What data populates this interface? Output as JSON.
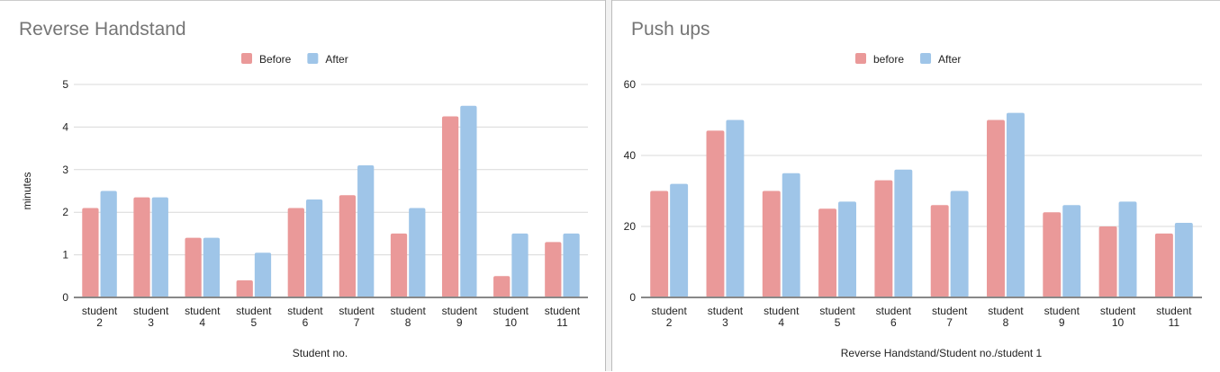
{
  "chart_data": [
    {
      "type": "bar",
      "title": "Reverse Handstand",
      "xlabel": "Student no.",
      "ylabel": "minutes",
      "ylim": [
        0,
        5
      ],
      "yticks": [
        0,
        1,
        2,
        3,
        4,
        5
      ],
      "grid": true,
      "legend_position": "top",
      "categories": [
        "student 2",
        "student 3",
        "student 4",
        "student 5",
        "student 6",
        "student 7",
        "student 8",
        "student 9",
        "student 10",
        "student 11"
      ],
      "series": [
        {
          "name": "Before",
          "color": "#ea9999",
          "values": [
            2.1,
            2.35,
            1.4,
            0.4,
            2.1,
            2.4,
            1.5,
            4.25,
            0.5,
            1.3
          ]
        },
        {
          "name": "After",
          "color": "#9fc5e8",
          "values": [
            2.5,
            2.35,
            1.4,
            1.05,
            2.3,
            3.1,
            2.1,
            4.5,
            1.5,
            1.5
          ]
        }
      ]
    },
    {
      "type": "bar",
      "title": "Push ups",
      "xlabel": "Reverse Handstand/Student no./student 1",
      "ylabel": "",
      "ylim": [
        0,
        60
      ],
      "yticks": [
        0,
        20,
        40,
        60
      ],
      "grid": true,
      "legend_position": "top",
      "categories": [
        "student 2",
        "student 3",
        "student 4",
        "student 5",
        "student 6",
        "student 7",
        "student 8",
        "student 9",
        "student 10",
        "student 11"
      ],
      "series": [
        {
          "name": "before",
          "color": "#ea9999",
          "values": [
            30,
            47,
            30,
            25,
            33,
            26,
            50,
            24,
            20,
            18
          ]
        },
        {
          "name": "After",
          "color": "#9fc5e8",
          "values": [
            32,
            50,
            35,
            27,
            36,
            30,
            52,
            26,
            27,
            21
          ]
        }
      ]
    }
  ]
}
